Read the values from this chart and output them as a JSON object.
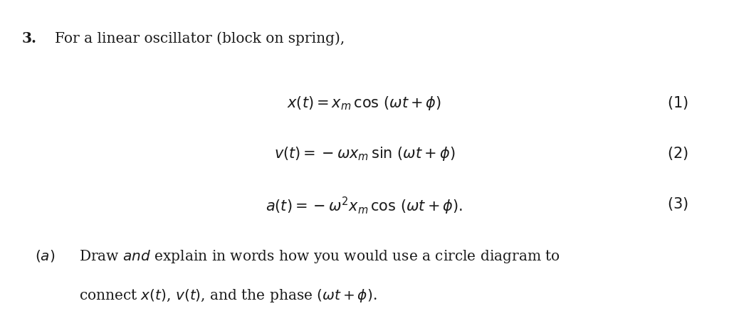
{
  "background_color": "#ffffff",
  "figsize": [
    10.24,
    4.44
  ],
  "dpi": 100,
  "text_color": "#1a1a1a",
  "font_size_intro": 14.5,
  "font_size_eq": 15,
  "font_size_label": 14.5
}
